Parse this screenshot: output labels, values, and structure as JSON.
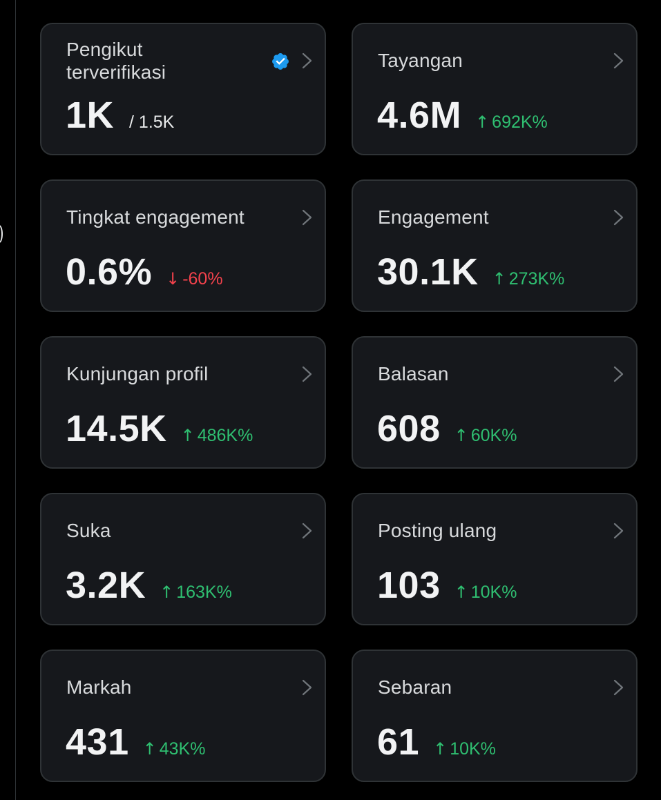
{
  "colors": {
    "background": "#000000",
    "card_background": "#16181c",
    "card_border": "#2f3336",
    "positive": "#2fbf71",
    "negative": "#f4424c",
    "verified_badge": "#1d9bf0"
  },
  "cards": [
    {
      "title": "Pengikut terverifikasi",
      "value": "1K",
      "sub_value": "/ 1.5K",
      "change": "",
      "trend": "none",
      "icons": [
        "verified-badge-icon",
        "chevron-right-icon"
      ]
    },
    {
      "title": "Tayangan",
      "value": "4.6M",
      "change": "692K%",
      "trend": "up",
      "arrow": "↑"
    },
    {
      "title": "Tingkat engagement",
      "value": "0.6%",
      "change": "-60%",
      "trend": "down",
      "arrow": "↓"
    },
    {
      "title": "Engagement",
      "value": "30.1K",
      "change": "273K%",
      "trend": "up",
      "arrow": "↑"
    },
    {
      "title": "Kunjungan profil",
      "value": "14.5K",
      "change": "486K%",
      "trend": "up",
      "arrow": "↑"
    },
    {
      "title": "Balasan",
      "value": "608",
      "change": "60K%",
      "trend": "up",
      "arrow": "↑"
    },
    {
      "title": "Suka",
      "value": "3.2K",
      "change": "163K%",
      "trend": "up",
      "arrow": "↑"
    },
    {
      "title": "Posting ulang",
      "value": "103",
      "change": "10K%",
      "trend": "up",
      "arrow": "↑"
    },
    {
      "title": "Markah",
      "value": "431",
      "change": "43K%",
      "trend": "up",
      "arrow": "↑"
    },
    {
      "title": "Sebaran",
      "value": "61",
      "change": "10K%",
      "trend": "up",
      "arrow": "↑"
    }
  ]
}
